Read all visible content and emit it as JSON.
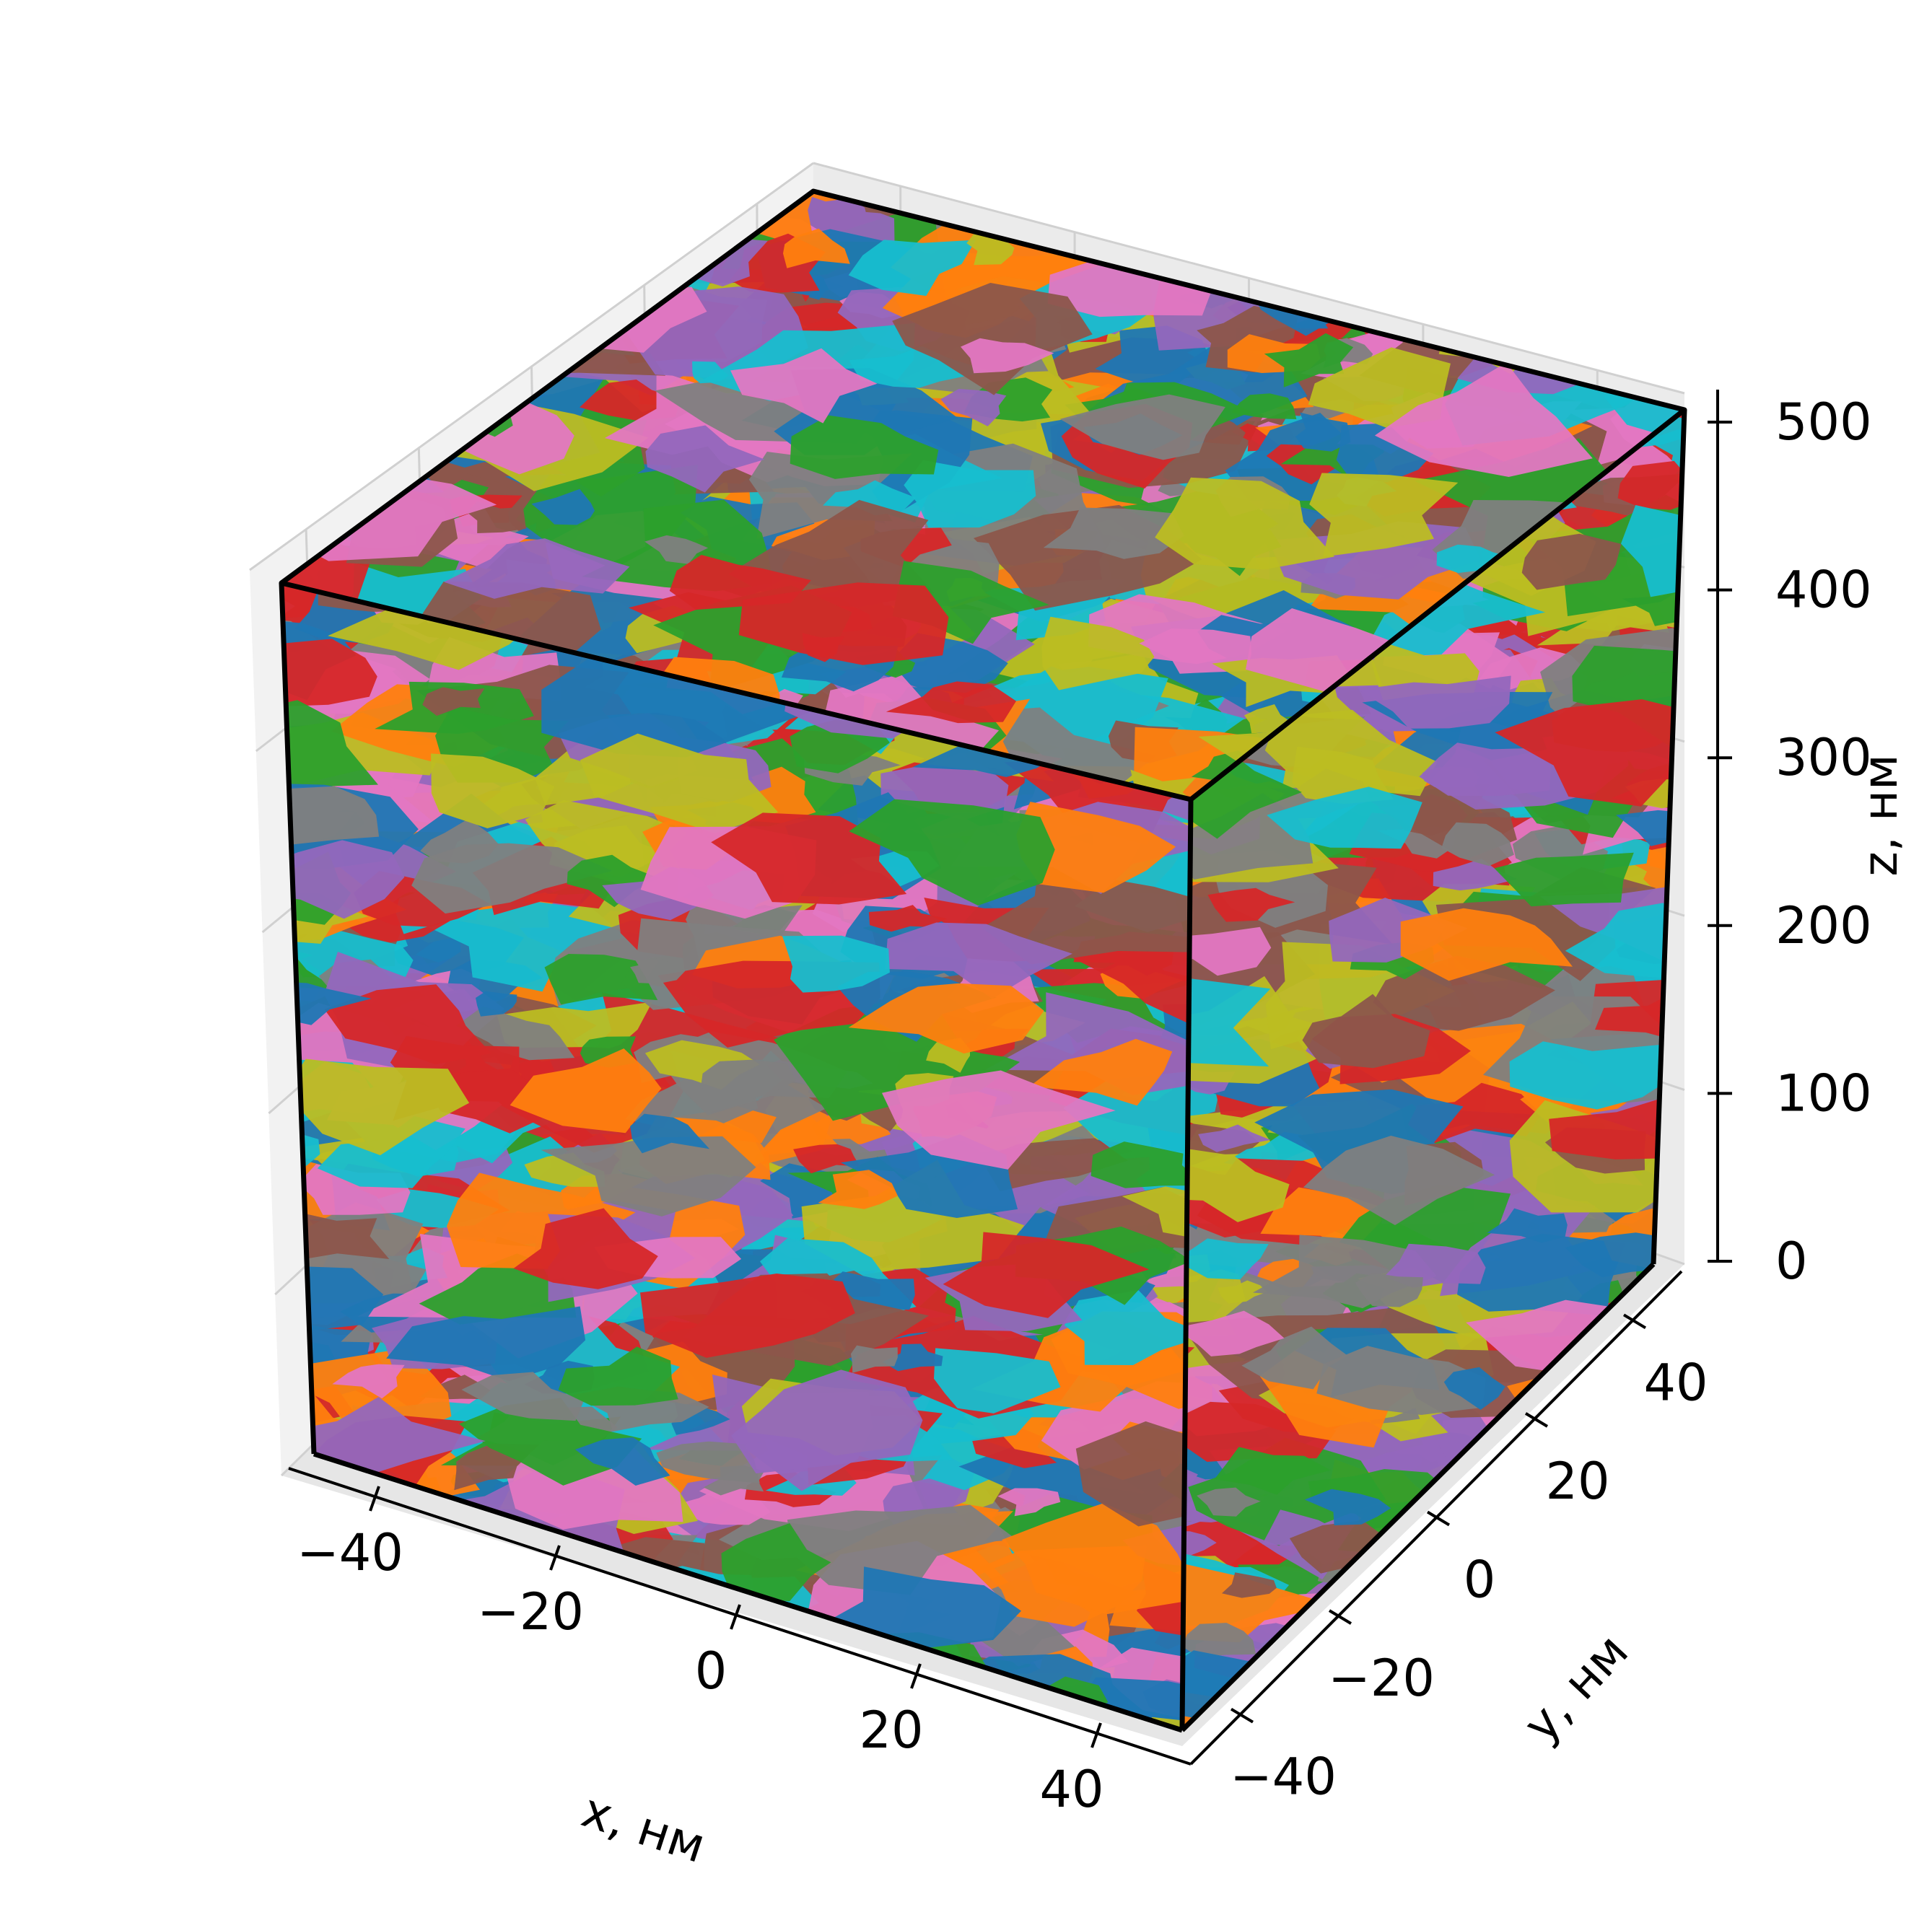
{
  "chart_data": {
    "type": "scatter",
    "projection": "3d",
    "title": "",
    "xlabel": "x, нм",
    "ylabel": "y, нм",
    "zlabel": "z, нм",
    "xlim": [
      -50,
      50
    ],
    "ylim": [
      -50,
      50
    ],
    "zlim": [
      0,
      500
    ],
    "xticks": [
      {
        "value": -40,
        "label": "−40"
      },
      {
        "value": -20,
        "label": "−20"
      },
      {
        "value": 0,
        "label": "0"
      },
      {
        "value": 20,
        "label": "20"
      },
      {
        "value": 40,
        "label": "40"
      }
    ],
    "yticks": [
      {
        "value": -40,
        "label": "−40"
      },
      {
        "value": -20,
        "label": "−20"
      },
      {
        "value": 0,
        "label": "0"
      },
      {
        "value": 20,
        "label": "20"
      },
      {
        "value": 40,
        "label": "40"
      }
    ],
    "zticks": [
      {
        "value": 0,
        "label": "0"
      },
      {
        "value": 100,
        "label": "100"
      },
      {
        "value": 200,
        "label": "200"
      },
      {
        "value": 300,
        "label": "300"
      },
      {
        "value": 400,
        "label": "400"
      },
      {
        "value": 500,
        "label": "500"
      }
    ],
    "grid": true,
    "legend": "none",
    "box_edge_color": "#000000",
    "grain_colors": [
      "#1f77b4",
      "#ff7f0e",
      "#2ca02c",
      "#d62728",
      "#9467bd",
      "#8c564b",
      "#e377c2",
      "#7f7f7f",
      "#bcbd22",
      "#17becf"
    ],
    "grain_count": 10
  }
}
